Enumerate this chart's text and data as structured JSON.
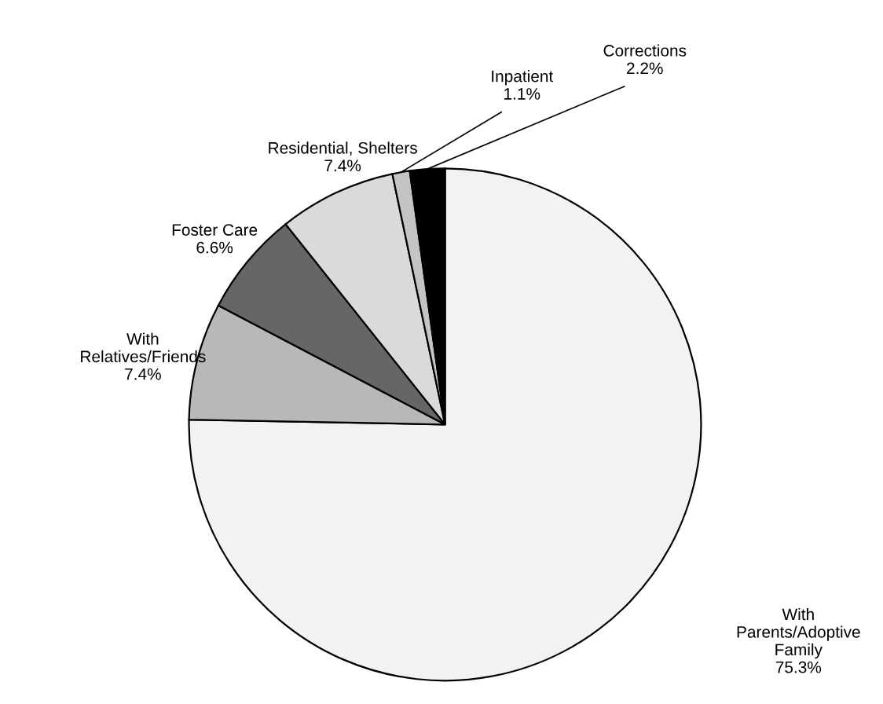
{
  "chart_data": {
    "type": "pie",
    "categories": [
      "With\nParents/Adoptive\nFamily",
      "With\nRelatives/Friends",
      "Foster Care",
      "Residential, Shelters",
      "Inpatient",
      "Corrections"
    ],
    "values": [
      75.3,
      7.4,
      6.6,
      7.4,
      1.1,
      2.2
    ],
    "value_labels": [
      "75.3%",
      "7.4%",
      "6.6%",
      "7.4%",
      "1.1%",
      "2.2%"
    ],
    "colors": [
      "#f2f2f2",
      "#b8b8b8",
      "#666666",
      "#dadada",
      "#c4c4c4",
      "#000000"
    ],
    "legend": false
  }
}
